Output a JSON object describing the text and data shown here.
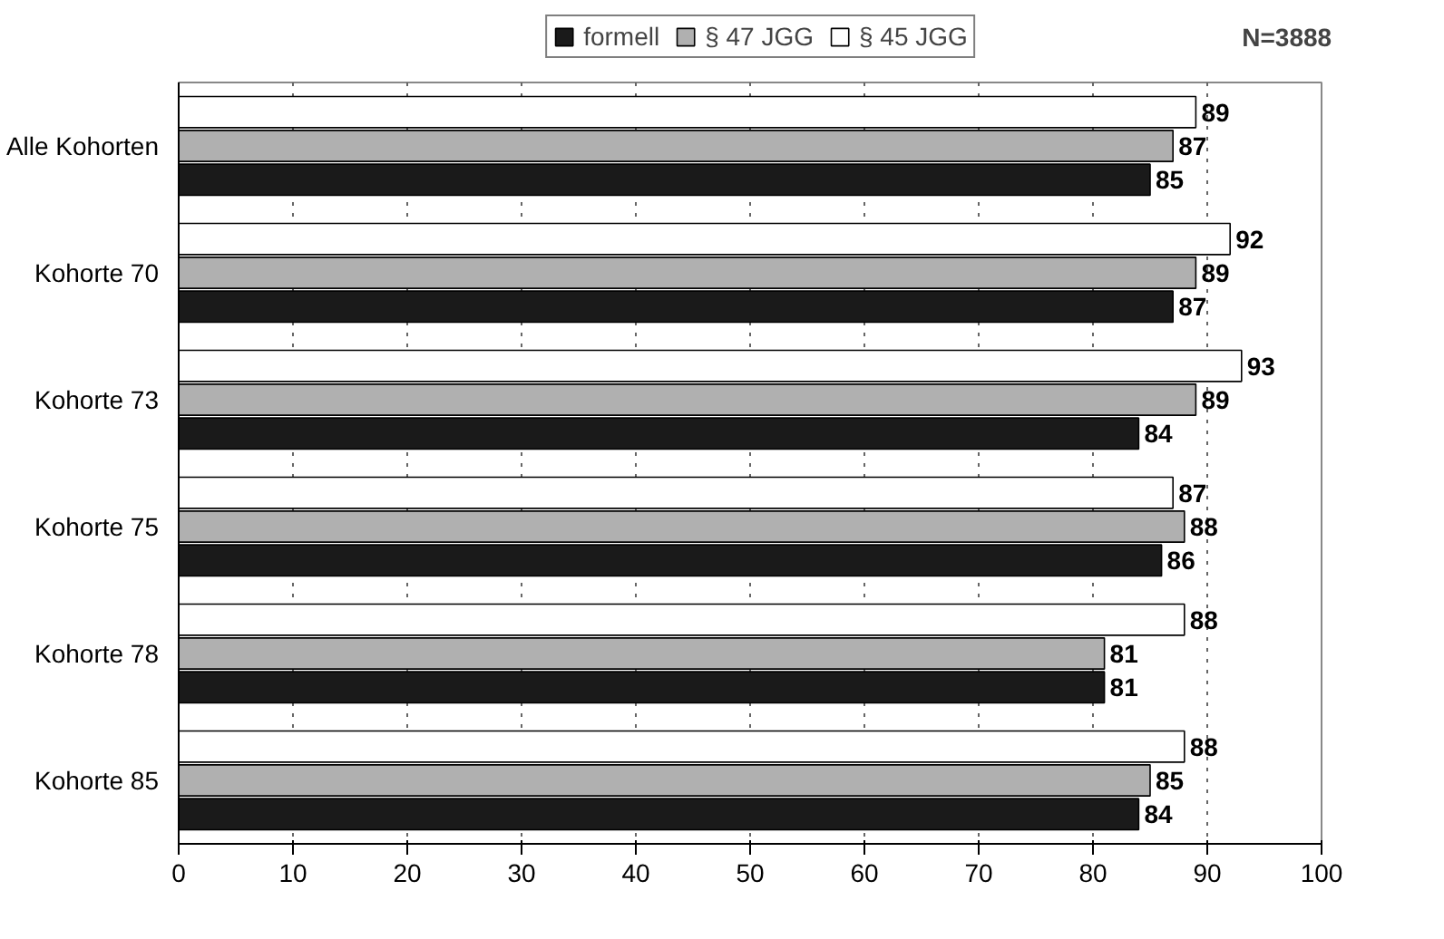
{
  "chart_data": {
    "type": "bar",
    "orientation": "horizontal",
    "categories": [
      "Alle Kohorten",
      "Kohorte 70",
      "Kohorte 73",
      "Kohorte 75",
      "Kohorte 78",
      "Kohorte 85"
    ],
    "series": [
      {
        "name": "formell",
        "color": "#1a1a1a",
        "values": [
          85,
          87,
          84,
          86,
          81,
          84
        ]
      },
      {
        "name": "§ 47 JGG",
        "color": "#b0b0b0",
        "values": [
          87,
          89,
          89,
          88,
          81,
          85
        ]
      },
      {
        "name": "§ 45 JGG",
        "color": "#ffffff",
        "values": [
          89,
          92,
          93,
          87,
          88,
          88
        ]
      }
    ],
    "xlim": [
      0,
      100
    ],
    "xticks": [
      0,
      10,
      20,
      30,
      40,
      50,
      60,
      70,
      80,
      90,
      100
    ],
    "grid": "x",
    "legend": "top",
    "data_labels": true,
    "annotations": [
      "N=3888"
    ]
  }
}
